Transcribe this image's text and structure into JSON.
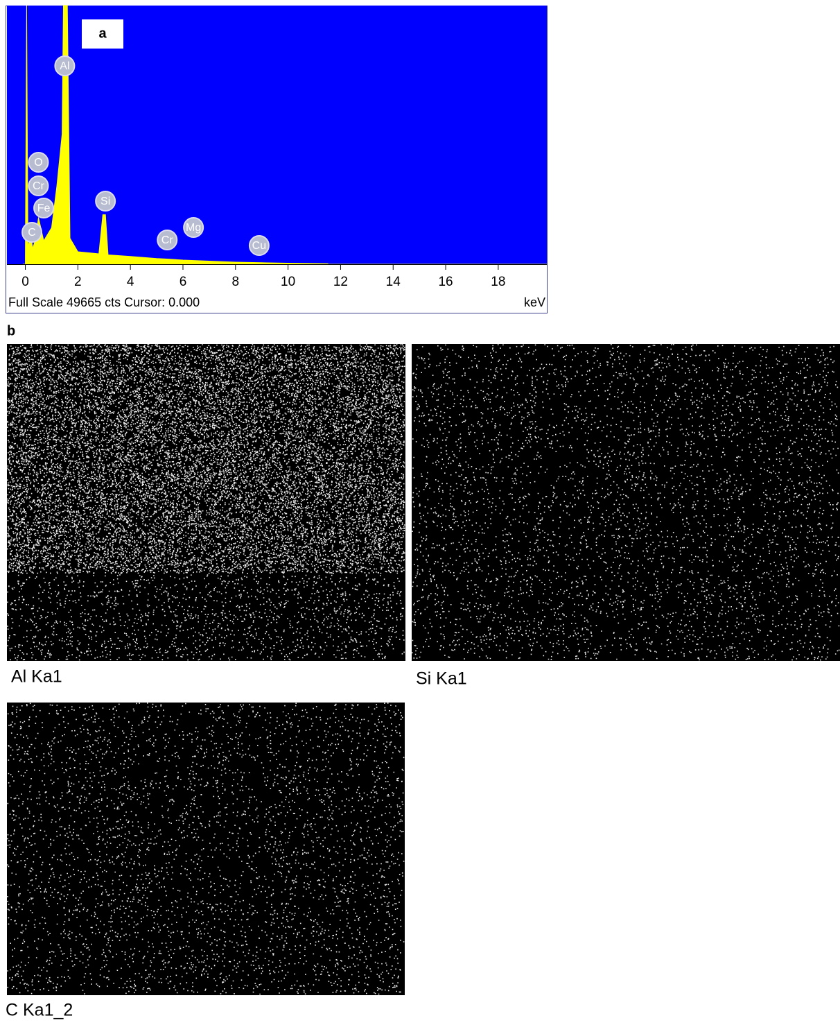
{
  "chart_data": {
    "type": "area",
    "panel_label": "a",
    "x": [
      -0.1,
      0.0,
      0.05,
      0.1,
      0.2,
      0.28,
      0.4,
      0.5,
      0.7,
      1.0,
      1.2,
      1.3,
      1.4,
      1.45,
      1.6,
      1.7,
      2.0,
      2.8,
      2.95,
      3.05,
      3.15,
      4.0,
      5.0,
      5.4,
      6.0,
      7.0,
      8.0,
      9.0,
      10.0,
      11.5,
      11.55,
      19.85
    ],
    "values": [
      0,
      0,
      49665,
      3000,
      6000,
      3000,
      5000,
      9000,
      4500,
      7000,
      15000,
      20000,
      25000,
      49665,
      49665,
      5000,
      2400,
      2000,
      9500,
      9500,
      1800,
      1500,
      1100,
      1000,
      800,
      600,
      400,
      300,
      200,
      100,
      0,
      0
    ],
    "color": "#ffff00",
    "background": "#0000ff",
    "xlim": [
      -0.7,
      19.85
    ],
    "ylim": [
      0,
      49665
    ],
    "xticks": [
      0,
      2,
      4,
      6,
      8,
      10,
      12,
      14,
      16,
      18
    ],
    "x_unit_label": "keV",
    "footer": "Full Scale 49665 cts Cursor: 0.000",
    "annotations": [
      {
        "text": "Al",
        "x": 1.5
      },
      {
        "text": "O",
        "x": 0.5
      },
      {
        "text": "Cr",
        "x": 0.5
      },
      {
        "text": "Fe",
        "x": 0.7
      },
      {
        "text": "C",
        "x": 0.25
      },
      {
        "text": "Si",
        "x": 3.05
      },
      {
        "text": "Cr",
        "x": 5.4
      },
      {
        "text": "Mg",
        "x": 6.4
      },
      {
        "text": "Cu",
        "x": 8.9
      }
    ]
  },
  "figure": {
    "label": "b",
    "maps": [
      "Al Ka1",
      "Si Ka1",
      "C Ka1_2"
    ]
  }
}
